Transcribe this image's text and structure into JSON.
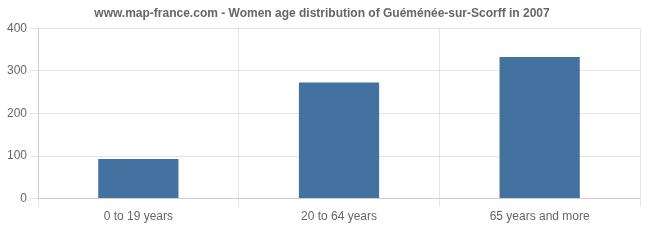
{
  "chart_data": {
    "type": "bar",
    "title": "www.map-france.com - Women age distribution of Guéménée-sur-Scorff in 2007",
    "categories": [
      "0 to 19 years",
      "20 to 64 years",
      "65 years and more"
    ],
    "values": [
      93,
      273,
      333
    ],
    "color": "#4472a0",
    "ylim": [
      0,
      400
    ],
    "yticks": [
      0,
      100,
      200,
      300,
      400
    ],
    "grid": true
  }
}
